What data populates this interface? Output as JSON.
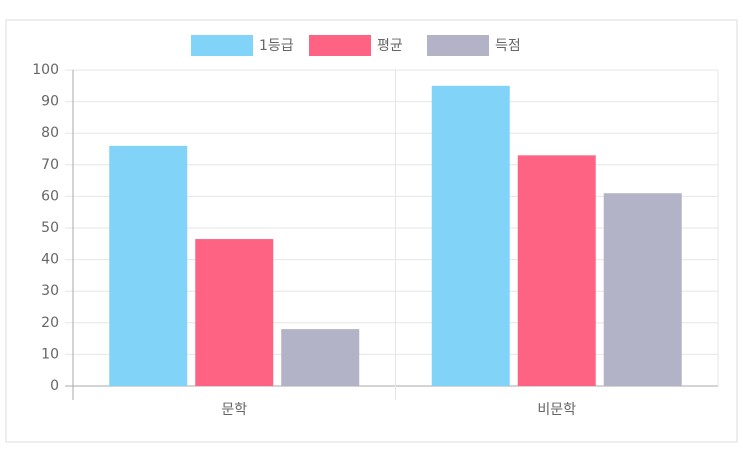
{
  "chart_data": {
    "type": "bar",
    "categories": [
      "문학",
      "비문학"
    ],
    "series": [
      {
        "name": "1등급",
        "color": "#81d4f7",
        "values": [
          76,
          95
        ]
      },
      {
        "name": "평균",
        "color": "#ff6384",
        "values": [
          46.5,
          73
        ]
      },
      {
        "name": "득점",
        "color": "#b2b3c6",
        "values": [
          18,
          61
        ]
      }
    ],
    "ylim": [
      0,
      100
    ],
    "yticks": [
      0,
      10,
      20,
      30,
      40,
      50,
      60,
      70,
      80,
      90,
      100
    ],
    "grid": true,
    "legend": "top"
  }
}
